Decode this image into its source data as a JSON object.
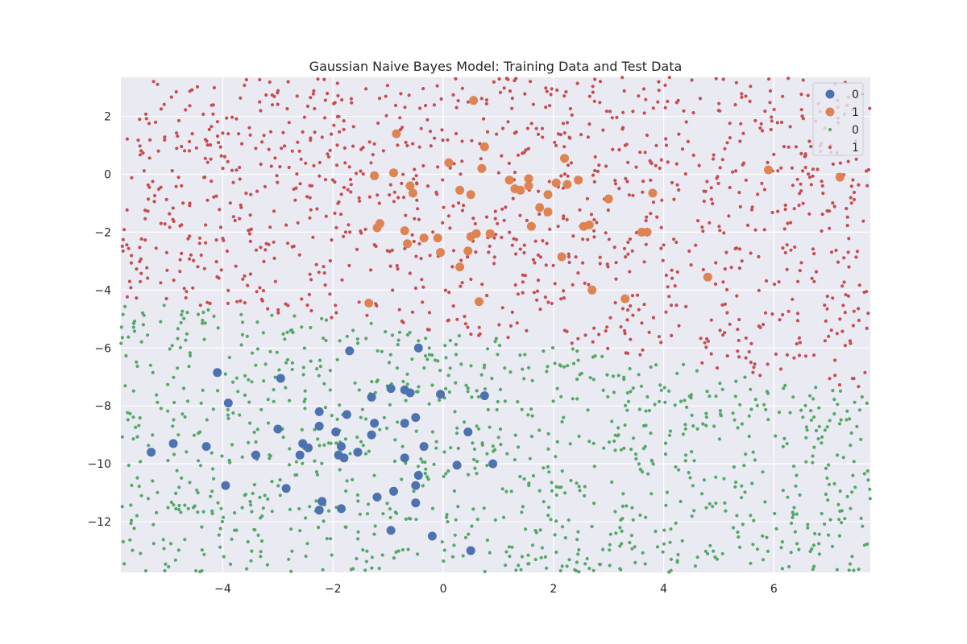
{
  "chart_data": {
    "type": "scatter",
    "title": "Gaussian Naive Bayes Model: Training Data and Test Data",
    "xlabel": "",
    "ylabel": "",
    "xlim": [
      -5.85,
      7.75
    ],
    "ylim": [
      -13.75,
      3.35
    ],
    "xticks": [
      -4,
      -2,
      0,
      2,
      4,
      6
    ],
    "yticks": [
      2,
      0,
      -2,
      -4,
      -6,
      -8,
      -10,
      -12
    ],
    "tick_labels": {
      "x": [
        "−4",
        "−2",
        "0",
        "2",
        "4",
        "6"
      ],
      "y": [
        "2",
        "0",
        "−2",
        "−4",
        "−6",
        "−8",
        "−10",
        "−12"
      ]
    },
    "grid": true,
    "legend": {
      "placement": "top-right",
      "entries": [
        "0",
        "1",
        "0",
        "1"
      ]
    },
    "colors": {
      "class0": "#4C72B0",
      "class1": "#DD8452",
      "predicted0": "#55A868",
      "predicted1": "#C44E52",
      "plot_background": "#EAEAF2",
      "grid": "#FFFFFF"
    },
    "series": [
      {
        "name": "0",
        "role": "training",
        "color": "#4C72B0",
        "points": [
          [
            -5.3,
            -9.6
          ],
          [
            -4.9,
            -9.3
          ],
          [
            -4.3,
            -9.4
          ],
          [
            -4.1,
            -6.85
          ],
          [
            -3.9,
            -7.9
          ],
          [
            -3.95,
            -10.75
          ],
          [
            -3.4,
            -9.7
          ],
          [
            -2.95,
            -7.05
          ],
          [
            -3.0,
            -8.8
          ],
          [
            -2.85,
            -10.85
          ],
          [
            -2.6,
            -9.7
          ],
          [
            -2.55,
            -9.3
          ],
          [
            -2.45,
            -9.45
          ],
          [
            -2.25,
            -8.2
          ],
          [
            -2.25,
            -8.7
          ],
          [
            -2.2,
            -11.3
          ],
          [
            -2.25,
            -11.6
          ],
          [
            -1.95,
            -8.9
          ],
          [
            -1.9,
            -9.7
          ],
          [
            -1.85,
            -9.4
          ],
          [
            -1.85,
            -11.55
          ],
          [
            -1.8,
            -9.8
          ],
          [
            -1.75,
            -8.3
          ],
          [
            -1.7,
            -6.1
          ],
          [
            -1.55,
            -9.6
          ],
          [
            -1.3,
            -7.7
          ],
          [
            -1.3,
            -9.0
          ],
          [
            -1.25,
            -8.6
          ],
          [
            -1.2,
            -11.15
          ],
          [
            -0.95,
            -7.4
          ],
          [
            -0.95,
            -12.3
          ],
          [
            -0.9,
            -10.95
          ],
          [
            -0.7,
            -7.45
          ],
          [
            -0.7,
            -8.6
          ],
          [
            -0.7,
            -9.8
          ],
          [
            -0.6,
            -7.55
          ],
          [
            -0.5,
            -8.4
          ],
          [
            -0.5,
            -10.75
          ],
          [
            -0.5,
            -11.35
          ],
          [
            -0.45,
            -6.0
          ],
          [
            -0.45,
            -10.4
          ],
          [
            -0.35,
            -9.4
          ],
          [
            -0.2,
            -12.5
          ],
          [
            -0.05,
            -7.6
          ],
          [
            0.25,
            -10.05
          ],
          [
            0.45,
            -8.9
          ],
          [
            0.5,
            -13.0
          ],
          [
            0.75,
            -7.65
          ],
          [
            0.9,
            -10.0
          ]
        ]
      },
      {
        "name": "1",
        "role": "training",
        "color": "#DD8452",
        "points": [
          [
            -1.35,
            -4.45
          ],
          [
            -1.25,
            -0.05
          ],
          [
            -1.2,
            -1.85
          ],
          [
            -1.15,
            -1.7
          ],
          [
            -0.9,
            0.05
          ],
          [
            -0.85,
            1.4
          ],
          [
            -0.7,
            -1.95
          ],
          [
            -0.65,
            -2.4
          ],
          [
            -0.6,
            -0.4
          ],
          [
            -0.55,
            -0.65
          ],
          [
            -0.35,
            -2.2
          ],
          [
            -0.1,
            -2.2
          ],
          [
            -0.05,
            -2.7
          ],
          [
            0.1,
            0.4
          ],
          [
            0.3,
            -0.55
          ],
          [
            0.3,
            -3.2
          ],
          [
            0.45,
            -2.65
          ],
          [
            0.5,
            -0.7
          ],
          [
            0.5,
            -2.15
          ],
          [
            0.55,
            2.55
          ],
          [
            0.6,
            -2.05
          ],
          [
            0.65,
            -4.4
          ],
          [
            0.7,
            0.2
          ],
          [
            0.75,
            0.95
          ],
          [
            0.85,
            -2.05
          ],
          [
            1.2,
            -0.2
          ],
          [
            1.3,
            -0.5
          ],
          [
            1.4,
            -0.55
          ],
          [
            1.55,
            -0.15
          ],
          [
            1.55,
            -0.4
          ],
          [
            1.6,
            -1.8
          ],
          [
            1.75,
            -1.15
          ],
          [
            1.9,
            -0.7
          ],
          [
            1.9,
            -1.3
          ],
          [
            2.05,
            -0.3
          ],
          [
            2.15,
            -2.85
          ],
          [
            2.2,
            0.55
          ],
          [
            2.25,
            -0.35
          ],
          [
            2.45,
            -0.2
          ],
          [
            2.55,
            -1.8
          ],
          [
            2.65,
            -1.75
          ],
          [
            2.7,
            -4.0
          ],
          [
            3.0,
            -0.85
          ],
          [
            3.3,
            -4.3
          ],
          [
            3.6,
            -2.0
          ],
          [
            3.7,
            -2.0
          ],
          [
            3.8,
            -0.65
          ],
          [
            4.8,
            -3.55
          ],
          [
            5.9,
            0.15
          ],
          [
            7.2,
            -0.1
          ]
        ]
      },
      {
        "name": "0",
        "role": "predicted",
        "color": "#55A868",
        "region": "y < approximately -0.30·x − 6.3 (approx. curved boundary from (-5.85,-4.3) to (7.75,-6.5))"
      },
      {
        "name": "1",
        "role": "predicted",
        "color": "#C44E52",
        "region": "remainder of the plot area above the decision boundary"
      }
    ]
  }
}
